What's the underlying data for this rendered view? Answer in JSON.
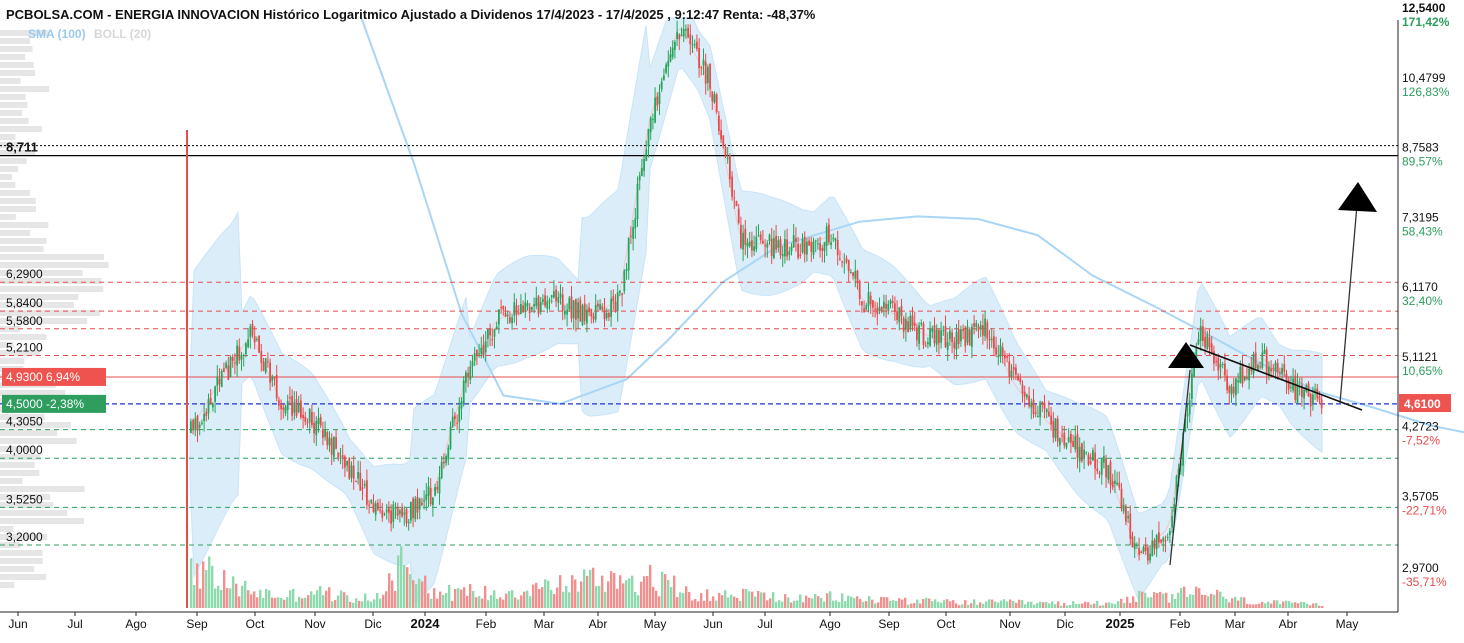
{
  "title": "PCBOLSA.COM - ENERGIA INNOVACION Histórico Logaritmico Ajustado a Dividenos 17/4/2023 - 17/4/2025 , 9:12:47 Renta: -48,37%",
  "legend": {
    "sma": "SMA (100)",
    "boll": "BOLL (20)"
  },
  "colors": {
    "up": "#26a65b",
    "down": "#e74c4c",
    "band": "#d6ebfa",
    "sma": "#a9d6f5",
    "vol_up": "#8fd9ae",
    "vol_down": "#f29090"
  },
  "chart_data": {
    "type": "candlestick",
    "scale": "log",
    "ylim": [
      2.85,
      12.8
    ],
    "x_months": [
      "Jun",
      "Jul",
      "Ago",
      "Sep",
      "Oct",
      "Nov",
      "Dic",
      "2024",
      "Feb",
      "Mar",
      "Abr",
      "May",
      "Jun",
      "Jul",
      "Ago",
      "Sep",
      "Oct",
      "Nov",
      "Dic",
      "2025",
      "Feb",
      "Mar",
      "Abr",
      "May"
    ],
    "right_ticks": [
      {
        "price": "12,5400",
        "pct": "171,42%",
        "value": 12.54
      },
      {
        "price": "10,4799",
        "pct": "126,83%",
        "value": 10.4799
      },
      {
        "price": "8,7583",
        "pct": "89,57%",
        "value": 8.7583
      },
      {
        "price": "7,3195",
        "pct": "58,43%",
        "value": 7.3195
      },
      {
        "price": "6,1170",
        "pct": "32,40%",
        "value": 6.117
      },
      {
        "price": "5,1121",
        "pct": "10,65%",
        "value": 5.1121
      },
      {
        "price": "4,2723",
        "pct": "-7,52%",
        "value": 4.2723
      },
      {
        "price": "3,5705",
        "pct": "-22,71%",
        "value": 3.5705
      },
      {
        "price": "2,9700",
        "pct": "-35,71%",
        "value": 2.97
      }
    ],
    "current_price": {
      "label": "4,6100",
      "value": 4.61
    },
    "left_levels": [
      {
        "label": "6,2900",
        "value": 6.29,
        "style": "red-dashed"
      },
      {
        "label": "5,8400",
        "value": 5.84,
        "style": "red-dashed"
      },
      {
        "label": "5,5800",
        "value": 5.58,
        "style": "red-dashed"
      },
      {
        "label": "5,2100",
        "value": 5.21,
        "style": "red-dashed"
      },
      {
        "label": "4,3050",
        "value": 4.305,
        "style": "green-dashed"
      },
      {
        "label": "4,0000",
        "value": 4.0,
        "style": "green-dashed"
      },
      {
        "label": "3,5250",
        "value": 3.525,
        "style": "green-dashed"
      },
      {
        "label": "3,2000",
        "value": 3.2,
        "style": "green-dashed"
      }
    ],
    "resistance": {
      "label": "8,711",
      "value": 8.711
    },
    "red_marker": {
      "label": "4,9300",
      "pct": "6,94%",
      "value": 4.93
    },
    "green_marker": {
      "label": "4,5000",
      "pct": "-2,38%",
      "value": 4.5
    },
    "blue_line": {
      "value": 4.6
    },
    "price_path": [
      [
        0,
        4.3
      ],
      [
        1,
        4.9
      ],
      [
        2,
        5.5
      ],
      [
        3,
        4.6
      ],
      [
        4,
        4.4
      ],
      [
        5,
        4.0
      ],
      [
        6,
        3.5
      ],
      [
        7,
        3.45
      ],
      [
        8,
        3.7
      ],
      [
        9,
        4.9
      ],
      [
        10,
        5.7
      ],
      [
        11,
        5.9
      ],
      [
        12,
        6.0
      ],
      [
        13,
        5.75
      ],
      [
        14,
        6.0
      ],
      [
        15,
        9.5
      ],
      [
        16,
        12.2
      ],
      [
        17,
        10.5
      ],
      [
        18,
        7.0
      ],
      [
        19,
        6.9
      ],
      [
        20,
        6.9
      ],
      [
        21,
        7.1
      ],
      [
        22,
        6.0
      ],
      [
        23,
        5.8
      ],
      [
        24,
        5.5
      ],
      [
        25,
        5.4
      ],
      [
        26,
        5.6
      ],
      [
        27,
        4.8
      ],
      [
        28,
        4.4
      ],
      [
        29,
        4.1
      ],
      [
        30,
        3.9
      ],
      [
        31,
        3.1
      ],
      [
        32,
        3.35
      ],
      [
        33,
        5.6
      ],
      [
        34,
        4.8
      ],
      [
        35,
        5.2
      ],
      [
        36,
        4.8
      ],
      [
        37,
        4.61
      ]
    ],
    "volume_path": [
      [
        0,
        0.8
      ],
      [
        1,
        0.45
      ],
      [
        2,
        0.3
      ],
      [
        3,
        0.2
      ],
      [
        4,
        0.3
      ],
      [
        5,
        0.2
      ],
      [
        6,
        0.15
      ],
      [
        7,
        0.9
      ],
      [
        8,
        0.25
      ],
      [
        9,
        0.3
      ],
      [
        10,
        0.25
      ],
      [
        11,
        0.35
      ],
      [
        12,
        0.4
      ],
      [
        13,
        0.5
      ],
      [
        14,
        0.55
      ],
      [
        15,
        0.5
      ],
      [
        16,
        0.35
      ],
      [
        17,
        0.2
      ],
      [
        18,
        0.25
      ],
      [
        19,
        0.2
      ],
      [
        20,
        0.15
      ],
      [
        21,
        0.2
      ],
      [
        22,
        0.15
      ],
      [
        23,
        0.15
      ],
      [
        24,
        0.12
      ],
      [
        25,
        0.1
      ],
      [
        26,
        0.1
      ],
      [
        27,
        0.1
      ],
      [
        28,
        0.08
      ],
      [
        29,
        0.08
      ],
      [
        30,
        0.1
      ],
      [
        31,
        0.2
      ],
      [
        32,
        0.2
      ],
      [
        33,
        0.3
      ],
      [
        34,
        0.15
      ],
      [
        35,
        0.1
      ],
      [
        36,
        0.08
      ],
      [
        37,
        0.05
      ]
    ],
    "sma_path": [
      [
        5.8,
        12.8
      ],
      [
        6.8,
        8.5
      ],
      [
        7.6,
        5.8
      ],
      [
        8.3,
        4.7
      ],
      [
        9.3,
        4.6
      ],
      [
        10.5,
        4.9
      ],
      [
        11.2,
        5.4
      ],
      [
        12.2,
        6.3
      ],
      [
        13.2,
        6.9
      ],
      [
        14.5,
        7.35
      ],
      [
        15.5,
        7.45
      ],
      [
        16.5,
        7.4
      ],
      [
        17.5,
        7.1
      ],
      [
        18.5,
        6.4
      ],
      [
        19.6,
        5.9
      ],
      [
        20.5,
        5.5
      ],
      [
        21.5,
        5.1
      ],
      [
        22.5,
        4.75
      ],
      [
        23.5,
        4.55
      ],
      [
        24.5,
        4.35
      ],
      [
        25.3,
        4.25
      ],
      [
        26.2,
        4.3
      ],
      [
        27.0,
        4.4
      ]
    ],
    "patterns": {
      "triangle_top": [
        1185,
        345
      ],
      "arrow_line": [
        [
          1170,
          565
        ],
        [
          1190,
          370
        ]
      ],
      "trend_line": [
        [
          1190,
          345
        ],
        [
          1362,
          410
        ]
      ],
      "breakout_arrow": [
        [
          1340,
          403
        ],
        [
          1357,
          205
        ]
      ]
    }
  }
}
